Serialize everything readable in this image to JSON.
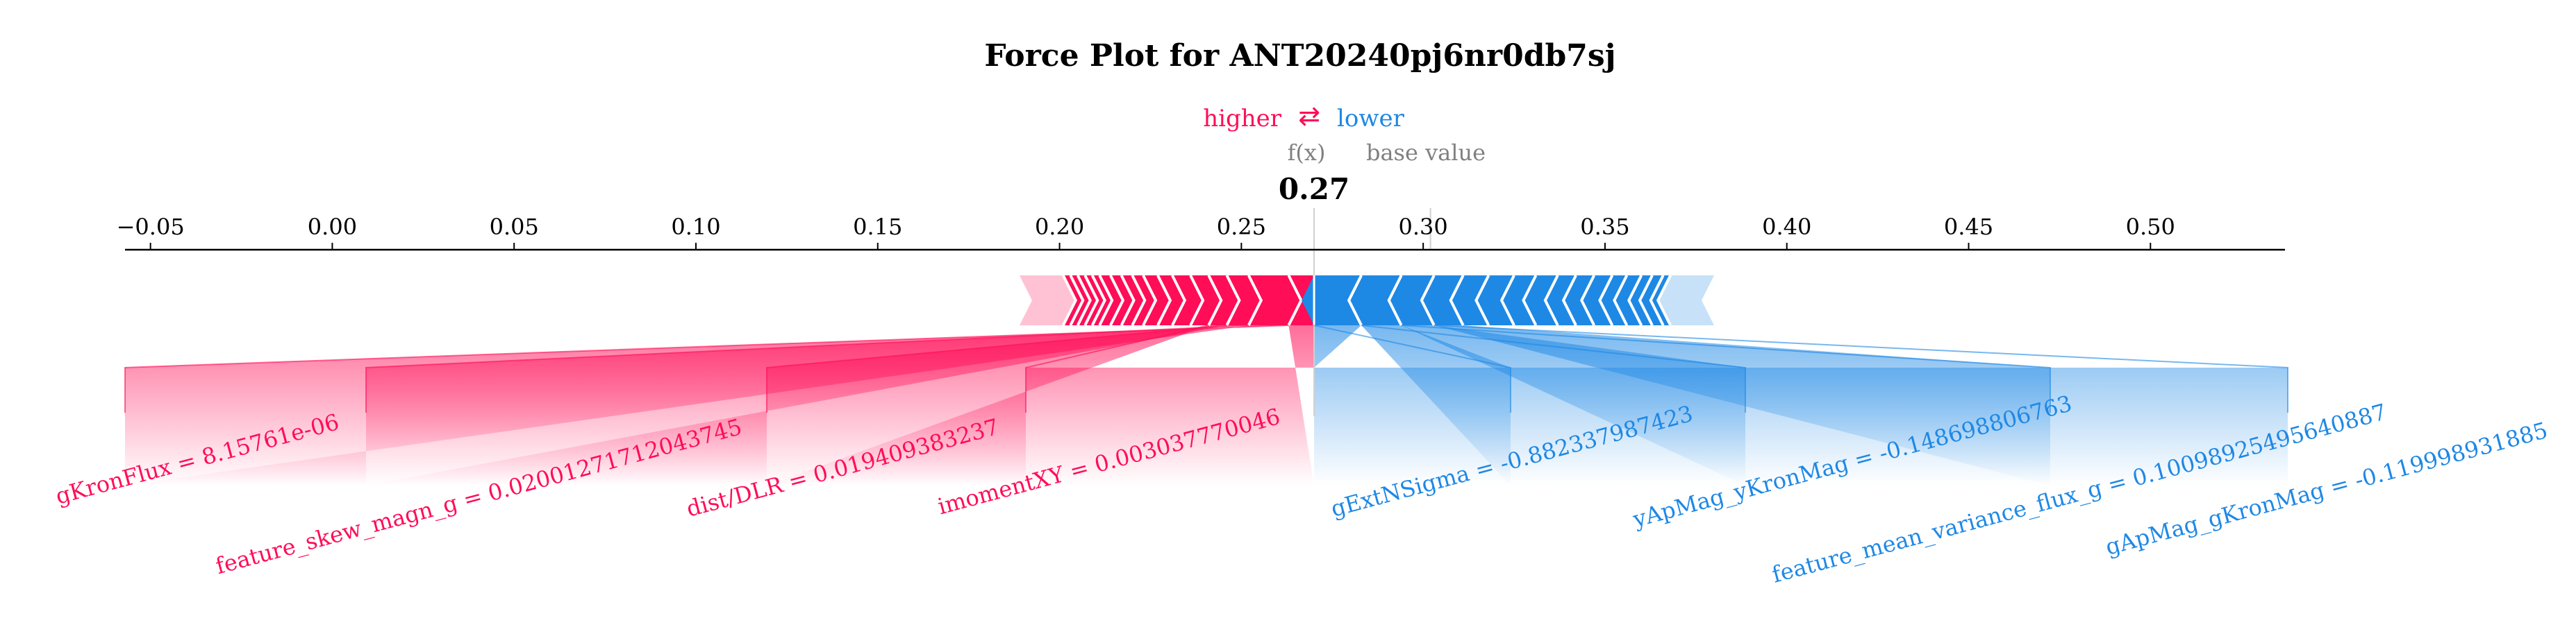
{
  "chart_data": {
    "type": "force_plot",
    "title": "Force Plot for ANT20240pj6nr0db7sj",
    "legend": {
      "higher": "higher",
      "arrow": "⇄",
      "lower": "lower"
    },
    "fx_label": "f(x)",
    "base_label": "base value",
    "fx_value": 0.27,
    "fx_display": "0.27",
    "base_value": 0.302,
    "xlim": [
      -0.057,
      0.537
    ],
    "ticks": [
      -0.05,
      0.0,
      0.05,
      0.1,
      0.15,
      0.2,
      0.25,
      0.3,
      0.35,
      0.4,
      0.45,
      0.5
    ],
    "tick_labels": [
      "−0.05",
      "0.00",
      "0.05",
      "0.10",
      "0.15",
      "0.20",
      "0.25",
      "0.30",
      "0.35",
      "0.40",
      "0.45",
      "0.50"
    ],
    "push_higher": {
      "color": "#ff0d57",
      "range": [
        0.189,
        0.27
      ],
      "segment_boundaries": [
        0.263,
        0.252,
        0.246,
        0.241,
        0.236,
        0.231,
        0.227,
        0.223,
        0.22,
        0.217,
        0.214,
        0.211,
        0.209,
        0.207,
        0.205,
        0.203,
        0.201
      ],
      "labelled": [
        {
          "label": "gKronFlux = 8.15761e-06",
          "left": 0.263,
          "right": 0.27
        },
        {
          "label": "feature_skew_magn_g = 0.02001271712043745",
          "left": 0.252,
          "right": 0.263
        },
        {
          "label": "dist/DLR = 0.019409383237",
          "left": 0.246,
          "right": 0.252
        },
        {
          "label": "imomentXY = 0.003037770046",
          "left": 0.241,
          "right": 0.246
        }
      ]
    },
    "push_lower": {
      "color": "#1e88e5",
      "range": [
        0.27,
        0.38
      ],
      "segment_boundaries": [
        0.283,
        0.294,
        0.303,
        0.311,
        0.318,
        0.325,
        0.331,
        0.337,
        0.342,
        0.347,
        0.352,
        0.356,
        0.36,
        0.363,
        0.366,
        0.368
      ],
      "labelled": [
        {
          "label": "gExtNSigma = -0.882337987423",
          "left": 0.27,
          "right": 0.283
        },
        {
          "label": "yApMag_yKronMag = -0.148698806763",
          "left": 0.283,
          "right": 0.294
        },
        {
          "label": "feature_mean_variance_flux_g = 0.10098925495640887",
          "left": 0.294,
          "right": 0.303
        },
        {
          "label": "gApMag_gKronMag = -0.119998931885",
          "left": 0.303,
          "right": 0.311
        }
      ]
    }
  }
}
